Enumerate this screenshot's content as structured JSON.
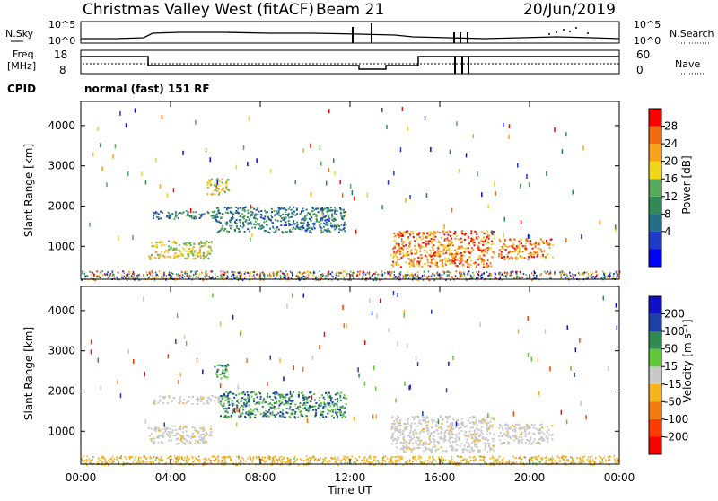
{
  "header": {
    "radar": "Christmas Valley West (fitACF)",
    "beam": "Beam 21",
    "date": "20/Jun/2019"
  },
  "strip": {
    "nsky_label": "N.Sky",
    "nsearch_label": "N.Search",
    "nsky_ticks": [
      "10^5",
      "10^0"
    ],
    "nsearch_ticks": [
      "10^5",
      "10^0"
    ],
    "freq_label": "Freq.",
    "freq_unit": "[MHz]",
    "freq_ticks": [
      "18",
      "8"
    ],
    "nave_label": "Nave",
    "nave_ticks": [
      "60",
      "0"
    ],
    "cpid_label": "CPID",
    "cpid_value": "normal (fast) 151 RF"
  },
  "chart_data": [
    {
      "type": "heatmap",
      "name": "power",
      "xlabel": "",
      "ylabel": "Slant Range [km]",
      "xlim": [
        0,
        24
      ],
      "ylim": [
        180,
        4600
      ],
      "yticks": [
        1000,
        2000,
        3000,
        4000
      ],
      "colorbar": {
        "label": "Power [dB]",
        "ticks": [
          "28",
          "24",
          "20",
          "16",
          "12",
          "8",
          "4"
        ],
        "colors": [
          "#0000ff",
          "#1f3cc8",
          "#236e86",
          "#2f8a55",
          "#56a85a",
          "#f2d51a",
          "#f7a21b",
          "#f26a10",
          "#ff0000"
        ]
      },
      "echo_regions": [
        {
          "start_ut": 3.2,
          "end_ut": 6.2,
          "range_km": [
            1700,
            1900
          ],
          "level": "12-16 dB"
        },
        {
          "start_ut": 3.0,
          "end_ut": 5.8,
          "range_km": [
            700,
            1150
          ],
          "level": "16-24 dB"
        },
        {
          "start_ut": 5.6,
          "end_ut": 6.6,
          "range_km": [
            2300,
            2700
          ],
          "level": "16-24 dB"
        },
        {
          "start_ut": 6.0,
          "end_ut": 11.8,
          "range_km": [
            1350,
            2000
          ],
          "level": "8-16 dB"
        },
        {
          "start_ut": 13.8,
          "end_ut": 18.4,
          "range_km": [
            500,
            1400
          ],
          "level": "20-28 dB"
        },
        {
          "start_ut": 18.6,
          "end_ut": 21.0,
          "range_km": [
            700,
            1200
          ],
          "level": "16-28 dB"
        }
      ]
    },
    {
      "type": "heatmap",
      "name": "velocity",
      "xlabel": "Time UT",
      "ylabel": "Slant Range [km]",
      "xlim": [
        0,
        24
      ],
      "xticks": [
        "00:00",
        "04:00",
        "08:00",
        "12:00",
        "16:00",
        "20:00",
        "00:00"
      ],
      "ylim": [
        180,
        4600
      ],
      "yticks": [
        1000,
        2000,
        3000,
        4000
      ],
      "colorbar": {
        "label": "Velocity [m s⁻¹]",
        "ticks": [
          "200",
          "100",
          "50",
          "15",
          "-15",
          "-50",
          "-100",
          "-200"
        ],
        "colors": [
          "#ff0000",
          "#ff3b00",
          "#f07a10",
          "#f5b21a",
          "#c8c8c8",
          "#5fc63a",
          "#2e8a50",
          "#2040a8",
          "#1010c8"
        ]
      },
      "echo_regions": [
        {
          "start_ut": 3.2,
          "end_ut": 6.2,
          "range_km": [
            1700,
            1900
          ],
          "level": "ground scatter"
        },
        {
          "start_ut": 3.0,
          "end_ut": 5.8,
          "range_km": [
            700,
            1150
          ],
          "level": "ground scatter"
        },
        {
          "start_ut": 5.9,
          "end_ut": 6.6,
          "range_km": [
            2300,
            2700
          ],
          "level": "-100 to 200 m/s"
        },
        {
          "start_ut": 6.2,
          "end_ut": 11.8,
          "range_km": [
            1350,
            2000
          ],
          "level": "15-100 m/s"
        },
        {
          "start_ut": 13.8,
          "end_ut": 18.4,
          "range_km": [
            500,
            1400
          ],
          "level": "ground scatter"
        },
        {
          "start_ut": 18.6,
          "end_ut": 21.0,
          "range_km": [
            700,
            1200
          ],
          "level": "ground scatter"
        }
      ]
    }
  ]
}
